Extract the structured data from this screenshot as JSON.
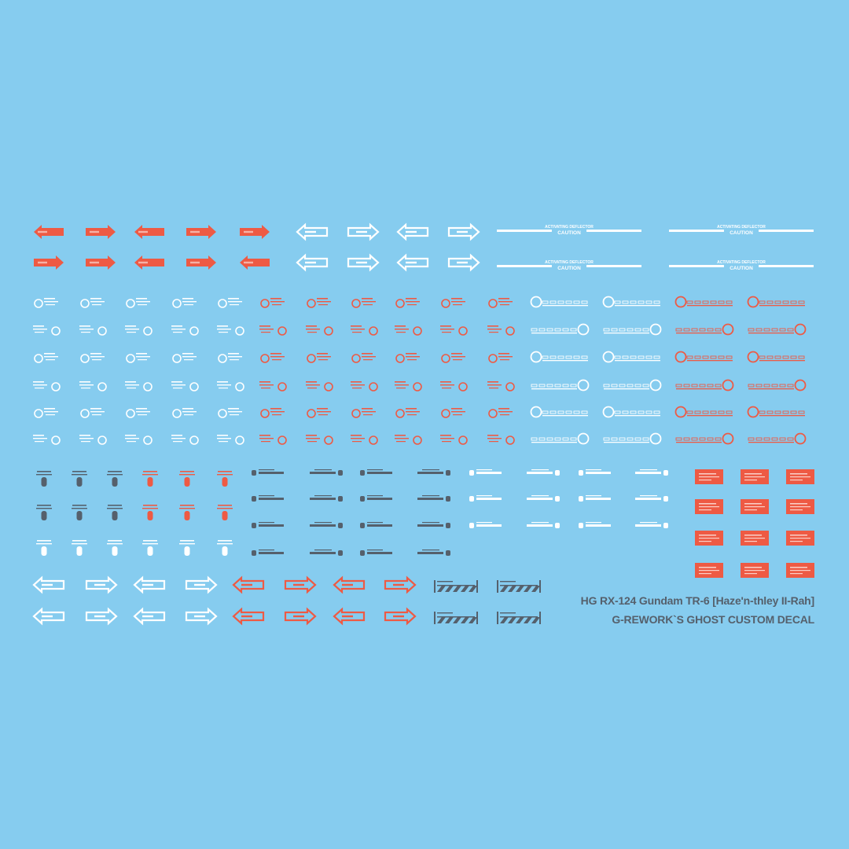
{
  "sheet": {
    "title": "HG RX-124 Gundam TR-6 [Haze'n-thley II-Rah]",
    "subtitle": "G-REWORK`S GHOST CUSTOM DECAL",
    "caution_heading": "ACTIVATING DEFLECTOR",
    "caution_label": "CAUTION"
  },
  "colors": {
    "background": "#86ccef",
    "red": "#ee5a44",
    "white": "#ffffff",
    "gray": "#55606c"
  },
  "icons": {
    "arrow": "arrow-decal-icon",
    "ring": "ring-marking-icon",
    "bolt": "bolt-decal-icon",
    "bar": "bar-stencil-icon",
    "plate": "warning-plate-icon",
    "hazard": "hazard-stripe-icon"
  }
}
